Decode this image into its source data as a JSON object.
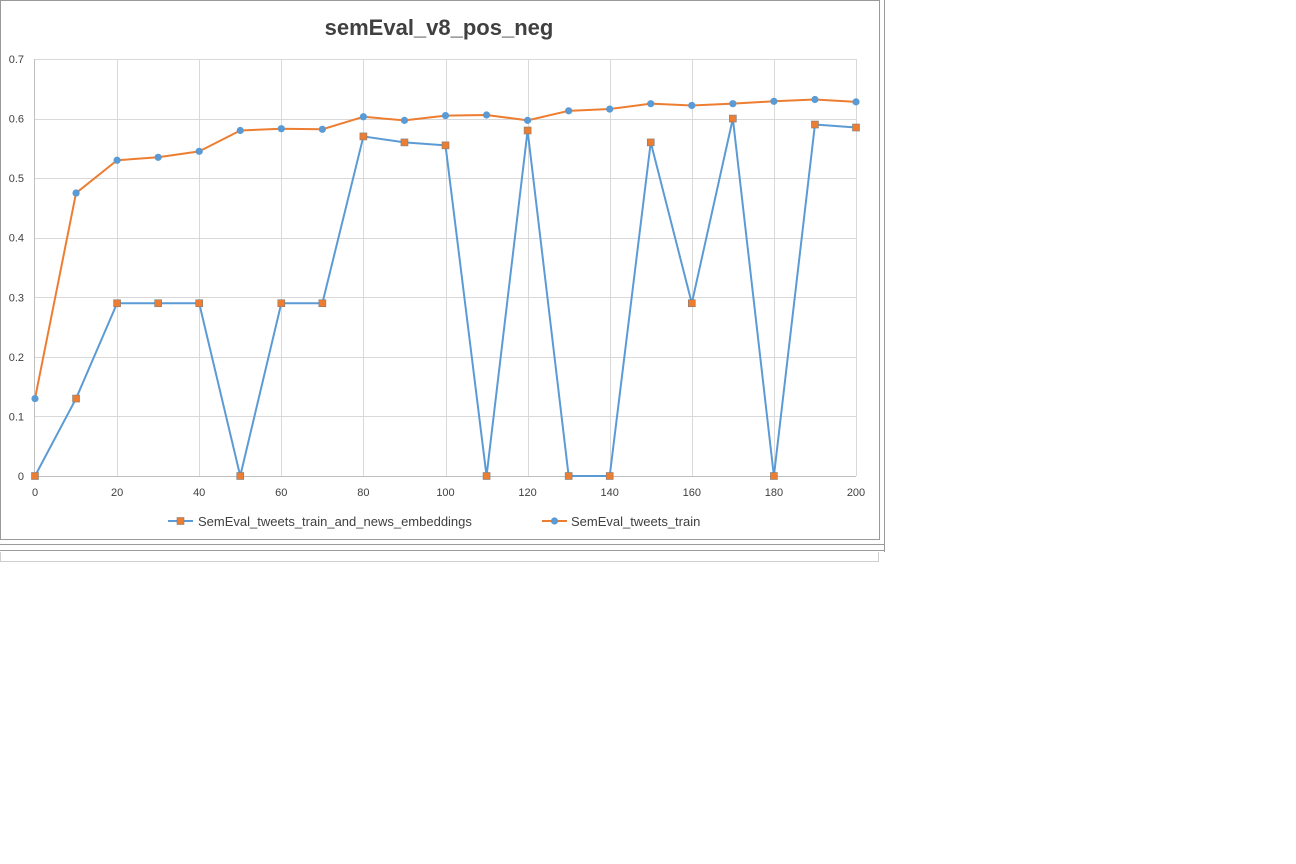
{
  "chart_data": {
    "type": "line",
    "title": "semEval_v8_pos_neg",
    "xlabel": "",
    "ylabel": "",
    "x": [
      0,
      10,
      20,
      30,
      40,
      50,
      60,
      70,
      80,
      90,
      100,
      110,
      120,
      130,
      140,
      150,
      160,
      170,
      180,
      190,
      200
    ],
    "xlim": [
      0,
      200
    ],
    "ylim": [
      0,
      0.7
    ],
    "x_ticks": [
      "0",
      "20",
      "40",
      "60",
      "80",
      "100",
      "120",
      "140",
      "160",
      "180",
      "200"
    ],
    "y_ticks": [
      "0",
      "0.1",
      "0.2",
      "0.3",
      "0.4",
      "0.5",
      "0.6",
      "0.7"
    ],
    "grid": true,
    "legend_position": "bottom",
    "series": [
      {
        "name": "SemEval_tweets_train_and_news_embeddings",
        "line_color": "#5B9BD5",
        "marker": "square",
        "marker_color": "#ED7D31",
        "values": [
          0.0,
          0.13,
          0.29,
          0.29,
          0.29,
          0.0,
          0.29,
          0.29,
          0.57,
          0.56,
          0.555,
          0.0,
          0.58,
          0.0,
          0.0,
          0.56,
          0.29,
          0.6,
          0.0,
          0.59,
          0.585
        ]
      },
      {
        "name": "SemEval_tweets_train",
        "line_color": "#ED7D31",
        "marker": "circle",
        "marker_color": "#5B9BD5",
        "values": [
          0.13,
          0.475,
          0.53,
          0.535,
          0.545,
          0.58,
          0.583,
          0.582,
          0.603,
          0.597,
          0.605,
          0.606,
          0.597,
          0.613,
          0.616,
          0.625,
          0.622,
          0.625,
          0.629,
          0.632,
          0.628
        ]
      }
    ]
  }
}
